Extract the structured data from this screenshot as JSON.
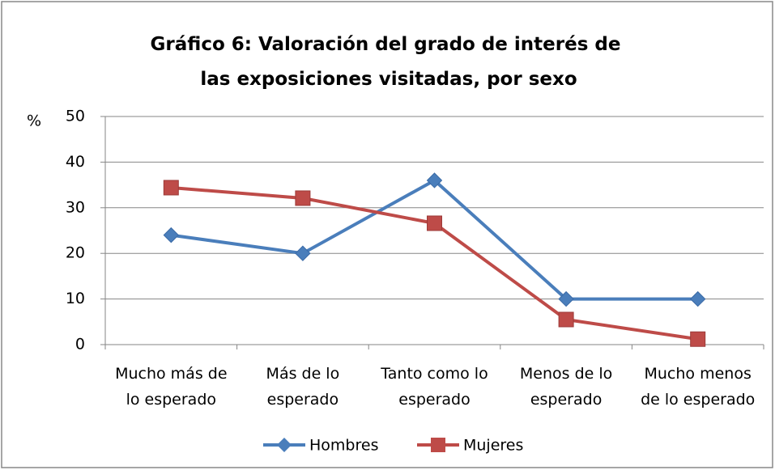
{
  "chart_data": {
    "type": "line",
    "title": "Gráfico 6: Valoración del grado de interés de las exposiciones visitadas, por sexo",
    "y_label": "%",
    "categories": [
      "Mucho más de lo esperado",
      "Más de lo esperado",
      "Tanto como lo esperado",
      "Menos de lo esperado",
      "Mucho menos de lo esperado"
    ],
    "series": [
      {
        "name": "Hombres",
        "color": "#4a7ebb",
        "marker": "diamond",
        "values": [
          24,
          20,
          36,
          10,
          10
        ]
      },
      {
        "name": "Mujeres",
        "color": "#be4b48",
        "marker": "square",
        "values": [
          34.4,
          32.1,
          26.6,
          5.5,
          1.2
        ]
      }
    ],
    "ylim": [
      0,
      50
    ],
    "yticks": [
      0,
      10,
      20,
      30,
      40,
      50
    ],
    "grid": true,
    "legend": "bottom"
  }
}
